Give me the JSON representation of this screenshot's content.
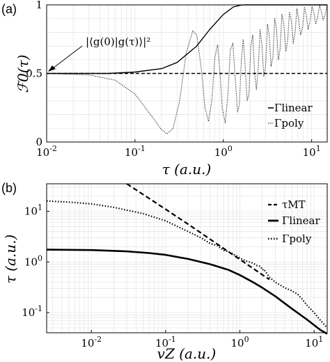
{
  "figure": {
    "panel_labels": [
      "(a)",
      "(b)"
    ]
  },
  "chart_data": [
    {
      "type": "line",
      "panel": "(a)",
      "xlabel": "τ (a.u.)",
      "ylabel": "ℱ0(τ)",
      "xscale": "log",
      "yscale": "linear",
      "xlim": [
        0.01,
        15
      ],
      "ylim": [
        0,
        1
      ],
      "xticks": [
        {
          "v": 0.01,
          "b": "10",
          "e": "-2"
        },
        {
          "v": 0.1,
          "b": "10",
          "e": "-1"
        },
        {
          "v": 1,
          "b": "10",
          "e": "0"
        },
        {
          "v": 10,
          "b": "10",
          "e": "1"
        }
      ],
      "yticks": [
        {
          "v": 0,
          "t": "0"
        },
        {
          "v": 0.5,
          "t": "0.5"
        },
        {
          "v": 1,
          "t": "1"
        }
      ],
      "grid": true,
      "legend_position": "lower-right",
      "annotation": {
        "text": "|⟨g(0)|g(τ)⟩|²",
        "x": 0.01,
        "y": 0.5
      },
      "series": [
        {
          "name": "Γlinear",
          "style": "solid",
          "x": [
            0.01,
            0.02,
            0.05,
            0.1,
            0.2,
            0.3,
            0.5,
            0.7,
            1.0,
            1.3,
            1.6,
            1.8,
            2.0,
            3.0,
            15
          ],
          "y": [
            0.5,
            0.5,
            0.5,
            0.51,
            0.535,
            0.58,
            0.7,
            0.82,
            0.93,
            0.985,
            0.999,
            1.0,
            1.0,
            1.0,
            1.0
          ]
        },
        {
          "name": "Γpoly",
          "style": "dotted",
          "x": [
            0.01,
            0.03,
            0.06,
            0.1,
            0.15,
            0.2,
            0.23,
            0.27,
            0.32,
            0.38,
            0.45,
            0.5,
            0.56,
            0.62,
            0.68,
            0.74,
            0.8,
            0.86,
            0.92,
            0.97,
            1.05,
            1.13,
            1.2,
            1.28,
            1.37,
            1.45,
            1.52,
            1.6,
            1.68,
            1.77,
            1.86,
            1.95,
            2.05,
            2.15,
            2.26,
            2.37,
            2.49,
            2.61,
            2.74,
            2.87,
            3.01,
            3.16,
            3.31,
            3.47,
            3.64,
            3.82,
            4.0,
            4.2,
            4.4,
            4.6,
            4.85,
            5.1,
            5.35,
            5.6,
            5.9,
            6.2,
            6.5,
            6.8,
            7.1,
            7.5,
            7.9,
            8.3,
            8.7,
            9.1,
            9.6,
            10.1,
            10.6,
            11.1,
            11.7,
            12.3,
            12.9,
            13.5,
            14.2,
            15.0
          ],
          "y": [
            0.5,
            0.49,
            0.45,
            0.35,
            0.2,
            0.09,
            0.06,
            0.1,
            0.3,
            0.65,
            0.81,
            0.78,
            0.55,
            0.25,
            0.15,
            0.3,
            0.61,
            0.71,
            0.5,
            0.25,
            0.14,
            0.35,
            0.67,
            0.72,
            0.45,
            0.22,
            0.27,
            0.6,
            0.75,
            0.55,
            0.3,
            0.35,
            0.7,
            0.78,
            0.5,
            0.38,
            0.55,
            0.82,
            0.7,
            0.48,
            0.55,
            0.86,
            0.78,
            0.55,
            0.62,
            0.9,
            0.82,
            0.6,
            0.68,
            0.93,
            0.85,
            0.66,
            0.74,
            0.95,
            0.88,
            0.72,
            0.8,
            0.97,
            0.9,
            0.78,
            0.84,
            0.98,
            0.92,
            0.82,
            0.88,
            0.99,
            0.94,
            0.86,
            0.91,
            1.0,
            0.95,
            0.89,
            0.93,
            1.0
          ]
        },
        {
          "name": "",
          "style": "dashed",
          "x": [
            0.01,
            15
          ],
          "y": [
            0.5,
            0.5
          ]
        }
      ]
    },
    {
      "type": "line",
      "panel": "(b)",
      "xlabel": "vZ (a.u.)",
      "ylabel": "τ (a.u.)",
      "xscale": "log",
      "yscale": "log",
      "xlim": [
        0.0025,
        15
      ],
      "ylim": [
        0.04,
        35
      ],
      "xticks": [
        {
          "v": 0.01,
          "b": "10",
          "e": "-2"
        },
        {
          "v": 0.1,
          "b": "10",
          "e": "-1"
        },
        {
          "v": 1,
          "b": "10",
          "e": "0"
        },
        {
          "v": 10,
          "b": "10",
          "e": "1"
        }
      ],
      "yticks": [
        {
          "v": 0.1,
          "b": "10",
          "e": "-1"
        },
        {
          "v": 1,
          "b": "10",
          "e": "0"
        },
        {
          "v": 10,
          "b": "10",
          "e": "1"
        }
      ],
      "grid": true,
      "legend_position": "upper-right",
      "series": [
        {
          "name": "τMT",
          "style": "dashed",
          "x": [
            0.03,
            0.06,
            0.1,
            0.2,
            0.4,
            0.7,
            1.0,
            1.5,
            2.0,
            2.5
          ],
          "y": [
            35,
            18,
            11,
            5.6,
            2.8,
            1.6,
            1.12,
            0.75,
            0.56,
            0.45
          ]
        },
        {
          "name": "Γlinear",
          "style": "solid",
          "x": [
            0.0025,
            0.01,
            0.03,
            0.06,
            0.1,
            0.2,
            0.4,
            0.7,
            1.0,
            1.5,
            2.0,
            3.0,
            5.0,
            8.0,
            12.0,
            15.0
          ],
          "y": [
            1.75,
            1.72,
            1.62,
            1.5,
            1.38,
            1.15,
            0.9,
            0.7,
            0.55,
            0.4,
            0.31,
            0.21,
            0.12,
            0.073,
            0.046,
            0.038
          ]
        },
        {
          "name": "Γpoly",
          "style": "dotted",
          "x": [
            0.0025,
            0.005,
            0.01,
            0.02,
            0.05,
            0.1,
            0.2,
            0.3,
            0.4,
            0.5,
            0.6,
            0.7,
            0.8,
            1.0,
            1.2,
            1.5,
            1.7,
            1.9,
            2.0,
            2.1,
            2.3,
            2.5,
            3.0,
            4.0,
            5.0,
            6.0,
            7.0,
            8.0,
            10.0,
            12.0,
            15.0
          ],
          "y": [
            16,
            15.2,
            14,
            12,
            9,
            6.5,
            4,
            3,
            2.3,
            2.1,
            1.7,
            1.6,
            1.45,
            1.2,
            1.05,
            0.95,
            0.85,
            0.82,
            0.7,
            0.72,
            0.6,
            0.5,
            0.4,
            0.31,
            0.27,
            0.23,
            0.18,
            0.14,
            0.1,
            0.072,
            0.05
          ]
        }
      ]
    }
  ]
}
